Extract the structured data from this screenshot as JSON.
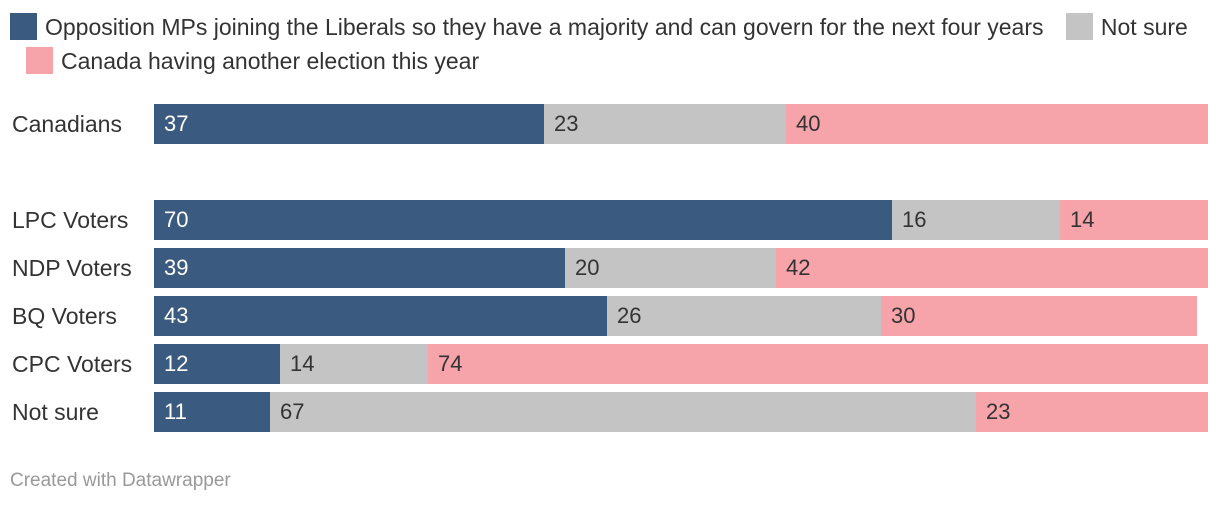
{
  "chart_data": {
    "type": "bar",
    "orientation": "horizontal-stacked-100",
    "title": "",
    "legend_position": "top",
    "categories": [
      "Canadians",
      "LPC Voters",
      "NDP Voters",
      "BQ Voters",
      "CPC Voters",
      "Not sure"
    ],
    "series": [
      {
        "name": "Opposition MPs joining the Liberals so they have a majority and can govern for the next four years",
        "color": "#3b5a80",
        "values": [
          37,
          70,
          39,
          43,
          12,
          11
        ]
      },
      {
        "name": "Not sure",
        "color": "#c4c4c4",
        "values": [
          23,
          16,
          20,
          26,
          14,
          67
        ]
      },
      {
        "name": "Canada having another election this year",
        "color": "#f7a3aa",
        "values": [
          40,
          14,
          42,
          30,
          74,
          23
        ]
      }
    ],
    "xlim": [
      0,
      100
    ]
  },
  "footer": "Created with Datawrapper"
}
